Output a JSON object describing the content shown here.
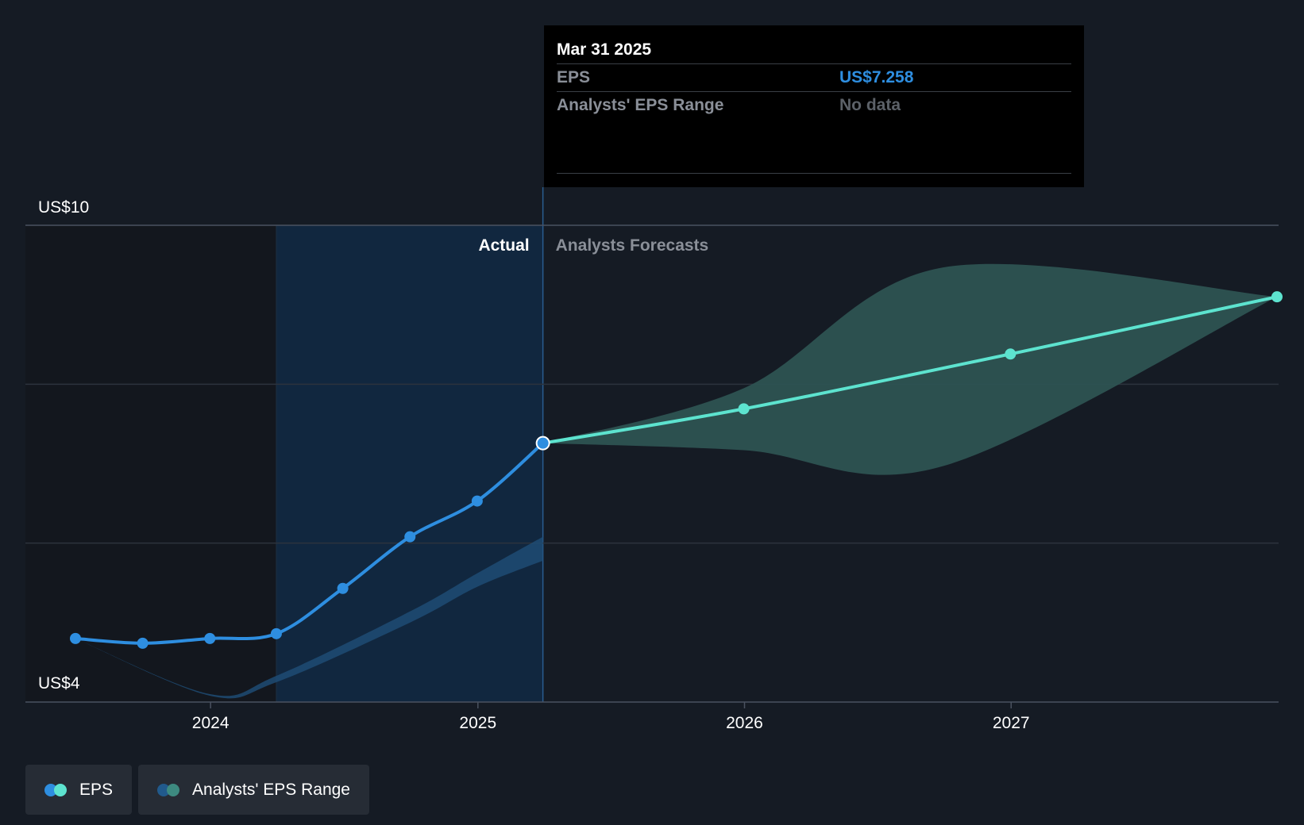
{
  "chart_data": {
    "type": "line",
    "y_axis": {
      "labels": [
        "US$10",
        "US$4"
      ],
      "ylim": [
        4,
        10
      ]
    },
    "x_axis": {
      "tick_labels": [
        "2024",
        "2025",
        "2026",
        "2027"
      ],
      "xlim": [
        "2023-06-30",
        "2027-12-31"
      ]
    },
    "region_labels": {
      "actual": "Actual",
      "forecast": "Analysts Forecasts"
    },
    "series": [
      {
        "name": "EPS",
        "kind": "actual",
        "points": [
          [
            "2023-06-30",
            4.8
          ],
          [
            "2023-09-30",
            4.74
          ],
          [
            "2023-12-31",
            4.8
          ],
          [
            "2024-03-31",
            4.86
          ],
          [
            "2024-06-30",
            5.43
          ],
          [
            "2024-09-30",
            6.08
          ],
          [
            "2024-12-31",
            6.53
          ],
          [
            "2025-03-31",
            7.258
          ]
        ]
      },
      {
        "name": "EPS",
        "kind": "forecast",
        "points": [
          [
            "2025-03-31",
            7.258
          ],
          [
            "2025-12-31",
            7.69
          ],
          [
            "2026-12-31",
            8.38
          ],
          [
            "2027-12-31",
            9.1
          ]
        ]
      },
      {
        "name": "Analysts' EPS Range",
        "kind": "range",
        "upper": [
          [
            "2025-03-31",
            7.258
          ],
          [
            "2025-12-31",
            7.95
          ],
          [
            "2026-09-30",
            9.47
          ],
          [
            "2027-12-31",
            9.1
          ]
        ],
        "lower": [
          [
            "2025-03-31",
            7.258
          ],
          [
            "2025-12-31",
            7.17
          ],
          [
            "2026-09-30",
            6.97
          ],
          [
            "2027-12-31",
            9.1
          ]
        ]
      },
      {
        "name": "Analysts' EPS Range",
        "kind": "past_band",
        "upper": [
          [
            "2023-06-30",
            4.8
          ],
          [
            "2023-12-31",
            4.1
          ],
          [
            "2024-03-31",
            4.33
          ],
          [
            "2024-09-30",
            5.14
          ],
          [
            "2024-12-31",
            5.62
          ],
          [
            "2025-03-31",
            6.08
          ]
        ],
        "lower": [
          [
            "2023-06-30",
            4.8
          ],
          [
            "2023-12-31",
            4.08
          ],
          [
            "2024-03-31",
            4.25
          ],
          [
            "2024-09-30",
            5.0
          ],
          [
            "2024-12-31",
            5.45
          ],
          [
            "2025-03-31",
            5.78
          ]
        ]
      }
    ],
    "highlight": {
      "date": "2025-03-31",
      "value": 7.258
    }
  },
  "tooltip": {
    "date": "Mar 31 2025",
    "rows": [
      {
        "label": "EPS",
        "value": "US$7.258"
      },
      {
        "label": "Analysts' EPS Range",
        "value": "No data"
      }
    ]
  },
  "legend": [
    {
      "label": "EPS",
      "colors": [
        "#2e8ee0",
        "#5de3cf"
      ]
    },
    {
      "label": "Analysts' EPS Range",
      "colors": [
        "#215a8c",
        "#3d8a80"
      ]
    }
  ],
  "colors": {
    "background": "#151b24",
    "actual_line": "#2e8ee0",
    "forecast_line": "#5de3cf",
    "forecast_band": "#2d5352",
    "past_band": "#1f4f78",
    "highlight_region": "#11273f",
    "shaded_past": "#13171e",
    "grid": "#2c333d"
  }
}
